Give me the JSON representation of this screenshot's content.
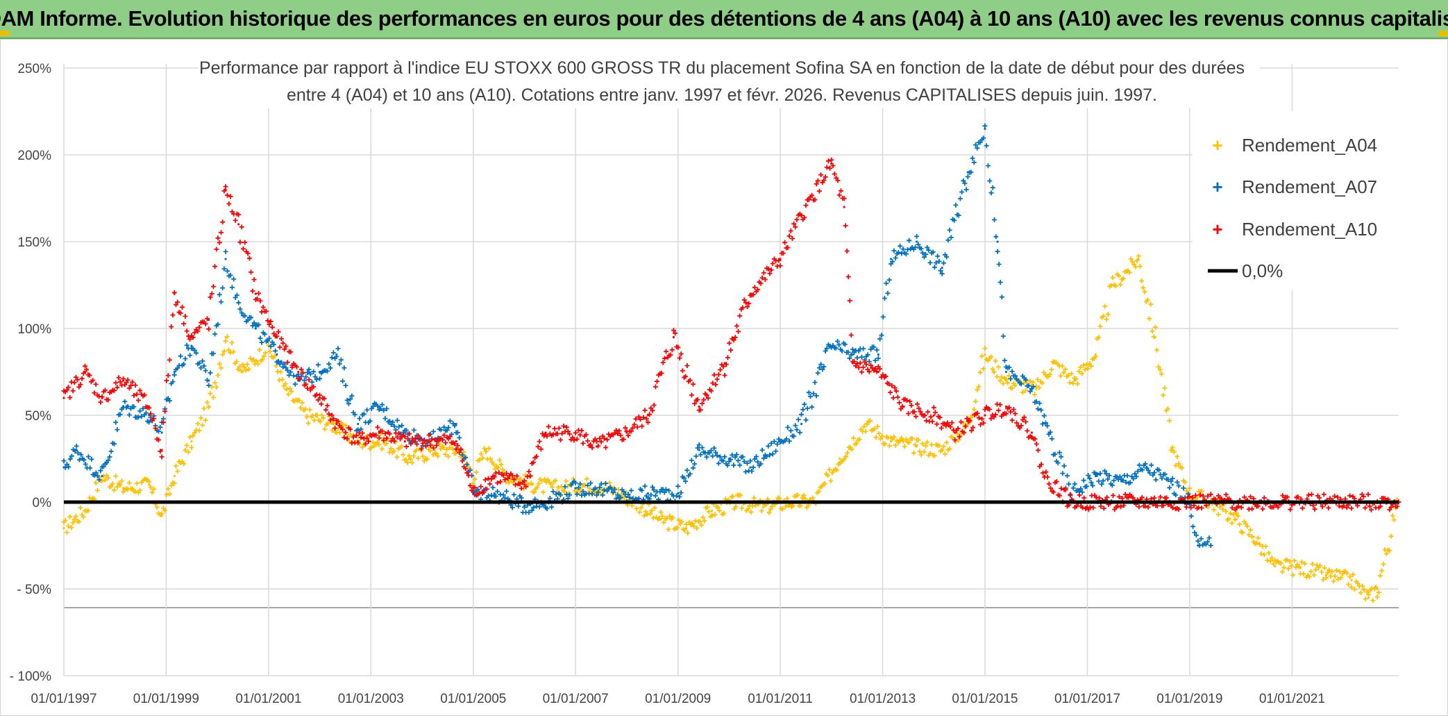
{
  "header": {
    "title": "ADAM Informe. Evolution historique des performances en euros pour des détentions de 4 ans (A04) à 10 ans (A10) avec les revenus connus capitalisés"
  },
  "colors": {
    "banner": "#8fce86",
    "A04": "#ffc000",
    "A07": "#0070c0",
    "A10": "#ff0000",
    "zero_line": "#000000"
  },
  "chart_data": {
    "type": "scatter",
    "subtitle_line1": "Performance par rapport à l'indice EU STOXX 600 GROSS TR  du placement Sofina SA en fonction de la date de début pour des durées",
    "subtitle_line2": "entre 4 (A04) et 10 ans (A10). Cotations entre janv. 1997 et févr. 2026. Revenus CAPITALISES depuis juin. 1997.",
    "x_ticks": [
      "01/01/1997",
      "01/01/1999",
      "01/01/2001",
      "01/01/2003",
      "01/01/2005",
      "01/01/2007",
      "01/01/2009",
      "01/01/2011",
      "01/01/2013",
      "01/01/2015",
      "01/01/2017",
      "01/01/2019",
      "01/01/2021"
    ],
    "y_ticks": [
      "250%",
      "200%",
      "150%",
      "100%",
      "50%",
      "0%",
      "- 50%",
      "- 100%"
    ],
    "x_range": [
      "1997-01-01",
      "2023-02-01"
    ],
    "y_range": [
      -100,
      250
    ],
    "legend_position": "top-right",
    "grid": true,
    "series": [
      {
        "name": "Rendement_A04",
        "color": "#ffc000",
        "points": [
          [
            "1997-01-01",
            -15
          ],
          [
            "1997-06-01",
            -5
          ],
          [
            "1997-10-01",
            15
          ],
          [
            "1998-03-01",
            8
          ],
          [
            "1998-09-01",
            10
          ],
          [
            "1998-12-01",
            -8
          ],
          [
            "1999-03-01",
            15
          ],
          [
            "1999-07-01",
            35
          ],
          [
            "1999-11-01",
            55
          ],
          [
            "2000-03-01",
            95
          ],
          [
            "2000-07-01",
            75
          ],
          [
            "2001-01-01",
            90
          ],
          [
            "2001-05-01",
            65
          ],
          [
            "2001-10-01",
            50
          ],
          [
            "2002-04-01",
            45
          ],
          [
            "2002-10-01",
            35
          ],
          [
            "2003-04-01",
            35
          ],
          [
            "2003-10-01",
            25
          ],
          [
            "2004-04-01",
            30
          ],
          [
            "2004-10-01",
            30
          ],
          [
            "2005-01-01",
            15
          ],
          [
            "2005-04-01",
            30
          ],
          [
            "2005-09-01",
            15
          ],
          [
            "2006-03-01",
            10
          ],
          [
            "2006-09-01",
            8
          ],
          [
            "2007-03-01",
            10
          ],
          [
            "2007-09-01",
            8
          ],
          [
            "2008-03-01",
            0
          ],
          [
            "2008-09-01",
            -10
          ],
          [
            "2009-03-01",
            -15
          ],
          [
            "2009-09-01",
            -5
          ],
          [
            "2010-03-01",
            0
          ],
          [
            "2010-09-01",
            -3
          ],
          [
            "2011-03-01",
            0
          ],
          [
            "2011-09-01",
            0
          ],
          [
            "2012-03-01",
            25
          ],
          [
            "2012-09-01",
            45
          ],
          [
            "2013-03-01",
            35
          ],
          [
            "2013-09-01",
            32
          ],
          [
            "2014-03-01",
            30
          ],
          [
            "2014-09-01",
            45
          ],
          [
            "2015-01-01",
            85
          ],
          [
            "2015-06-01",
            70
          ],
          [
            "2016-01-01",
            65
          ],
          [
            "2016-05-01",
            80
          ],
          [
            "2016-10-01",
            70
          ],
          [
            "2017-03-01",
            85
          ],
          [
            "2017-07-01",
            125
          ],
          [
            "2018-01-01",
            140
          ],
          [
            "2018-05-01",
            95
          ],
          [
            "2018-09-01",
            30
          ],
          [
            "2019-01-01",
            5
          ],
          [
            "2019-06-01",
            0
          ],
          [
            "2019-12-01",
            -10
          ],
          [
            "2020-04-01",
            -20
          ],
          [
            "2020-09-01",
            -37
          ],
          [
            "2021-03-01",
            -38
          ],
          [
            "2021-09-01",
            -42
          ],
          [
            "2022-03-01",
            -45
          ],
          [
            "2022-07-01",
            -55
          ],
          [
            "2022-09-01",
            -50
          ],
          [
            "2023-02-01",
            0
          ]
        ]
      },
      {
        "name": "Rendement_A07",
        "color": "#0070c0",
        "points": [
          [
            "1997-01-01",
            20
          ],
          [
            "1997-04-01",
            30
          ],
          [
            "1997-10-01",
            15
          ],
          [
            "1998-03-01",
            55
          ],
          [
            "1998-09-01",
            50
          ],
          [
            "1998-12-01",
            40
          ],
          [
            "1999-03-01",
            75
          ],
          [
            "1999-07-01",
            90
          ],
          [
            "1999-11-01",
            70
          ],
          [
            "2000-03-01",
            140
          ],
          [
            "2000-06-01",
            115
          ],
          [
            "2000-10-01",
            100
          ],
          [
            "2001-03-01",
            85
          ],
          [
            "2001-08-01",
            70
          ],
          [
            "2002-01-01",
            75
          ],
          [
            "2002-05-01",
            85
          ],
          [
            "2002-10-01",
            45
          ],
          [
            "2003-03-01",
            55
          ],
          [
            "2003-09-01",
            40
          ],
          [
            "2004-03-01",
            35
          ],
          [
            "2004-09-01",
            45
          ],
          [
            "2005-01-01",
            5
          ],
          [
            "2005-06-01",
            5
          ],
          [
            "2006-01-01",
            -2
          ],
          [
            "2006-06-01",
            0
          ],
          [
            "2007-01-01",
            8
          ],
          [
            "2007-06-01",
            8
          ],
          [
            "2008-01-01",
            3
          ],
          [
            "2008-06-01",
            5
          ],
          [
            "2009-01-01",
            5
          ],
          [
            "2009-06-01",
            30
          ],
          [
            "2010-01-01",
            25
          ],
          [
            "2010-06-01",
            20
          ],
          [
            "2011-01-01",
            35
          ],
          [
            "2011-06-01",
            45
          ],
          [
            "2012-01-01",
            90
          ],
          [
            "2012-06-01",
            85
          ],
          [
            "2012-12-01",
            85
          ],
          [
            "2013-03-01",
            140
          ],
          [
            "2013-09-01",
            150
          ],
          [
            "2014-03-01",
            135
          ],
          [
            "2014-09-01",
            190
          ],
          [
            "2015-01-01",
            215
          ],
          [
            "2015-04-01",
            150
          ],
          [
            "2015-06-01",
            75
          ],
          [
            "2015-12-01",
            65
          ],
          [
            "2016-04-01",
            40
          ],
          [
            "2016-09-01",
            5
          ],
          [
            "2017-03-01",
            15
          ],
          [
            "2017-09-01",
            12
          ],
          [
            "2018-03-01",
            20
          ],
          [
            "2018-09-01",
            10
          ],
          [
            "2019-01-01",
            0
          ],
          [
            "2019-03-01",
            -25
          ],
          [
            "2019-06-01",
            -25
          ]
        ]
      },
      {
        "name": "Rendement_A10",
        "color": "#ff0000",
        "points": [
          [
            "1997-01-01",
            60
          ],
          [
            "1997-06-01",
            75
          ],
          [
            "1997-10-01",
            60
          ],
          [
            "1998-03-01",
            70
          ],
          [
            "1998-09-01",
            55
          ],
          [
            "1998-12-01",
            30
          ],
          [
            "1999-03-01",
            120
          ],
          [
            "1999-07-01",
            95
          ],
          [
            "1999-11-01",
            105
          ],
          [
            "2000-03-01",
            180
          ],
          [
            "2000-06-01",
            160
          ],
          [
            "2000-10-01",
            120
          ],
          [
            "2001-03-01",
            95
          ],
          [
            "2001-08-01",
            75
          ],
          [
            "2002-01-01",
            60
          ],
          [
            "2002-05-01",
            45
          ],
          [
            "2002-10-01",
            35
          ],
          [
            "2003-03-01",
            40
          ],
          [
            "2003-09-01",
            35
          ],
          [
            "2004-03-01",
            35
          ],
          [
            "2004-09-01",
            35
          ],
          [
            "2005-01-01",
            5
          ],
          [
            "2005-06-01",
            15
          ],
          [
            "2006-01-01",
            10
          ],
          [
            "2006-06-01",
            40
          ],
          [
            "2007-01-01",
            40
          ],
          [
            "2007-06-01",
            32
          ],
          [
            "2008-01-01",
            40
          ],
          [
            "2008-06-01",
            50
          ],
          [
            "2008-12-01",
            95
          ],
          [
            "2009-06-01",
            55
          ],
          [
            "2009-12-01",
            80
          ],
          [
            "2010-06-01",
            120
          ],
          [
            "2011-01-01",
            140
          ],
          [
            "2011-06-01",
            165
          ],
          [
            "2012-01-01",
            195
          ],
          [
            "2012-04-01",
            170
          ],
          [
            "2012-06-01",
            80
          ],
          [
            "2012-12-01",
            75
          ],
          [
            "2013-06-01",
            55
          ],
          [
            "2014-01-01",
            50
          ],
          [
            "2014-06-01",
            40
          ],
          [
            "2015-01-01",
            50
          ],
          [
            "2015-06-01",
            55
          ],
          [
            "2015-12-01",
            40
          ],
          [
            "2016-03-01",
            15
          ],
          [
            "2016-09-01",
            0
          ],
          [
            "2023-02-01",
            0
          ]
        ]
      }
    ],
    "reference_line": {
      "name": "0,0%",
      "y": 0,
      "color": "#000000"
    },
    "legend": [
      "Rendement_A04",
      "Rendement_A07",
      "Rendement_A10",
      "0,0%"
    ]
  }
}
